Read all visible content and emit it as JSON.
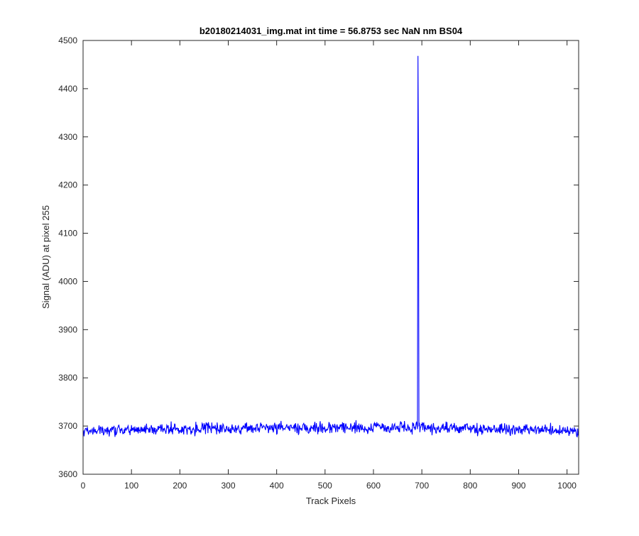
{
  "chart_data": {
    "type": "line",
    "title": "b20180214031_img.mat int time = 56.8753 sec  NaN nm BS04",
    "xlabel": "Track Pixels",
    "ylabel": "Signal (ADU) at pixel 255",
    "xlim": [
      0,
      1024
    ],
    "ylim": [
      3600,
      4500
    ],
    "xticks": [
      "0",
      "100",
      "200",
      "300",
      "400",
      "500",
      "600",
      "700",
      "800",
      "900",
      "1000"
    ],
    "yticks": [
      "3600",
      "3700",
      "3800",
      "3900",
      "4000",
      "4100",
      "4200",
      "4300",
      "4400",
      "4500"
    ],
    "grid": false,
    "series": [
      {
        "color": "#0000ff",
        "baseline_y": 3690,
        "baseline_drift_end_y": 3697,
        "noise_amplitude": 12,
        "n_points": 1024,
        "spike": {
          "x": 692,
          "y": 4468,
          "secondary_y": 4260
        }
      }
    ],
    "colors": {
      "line": "#0000ff",
      "axes": "#262626"
    }
  }
}
